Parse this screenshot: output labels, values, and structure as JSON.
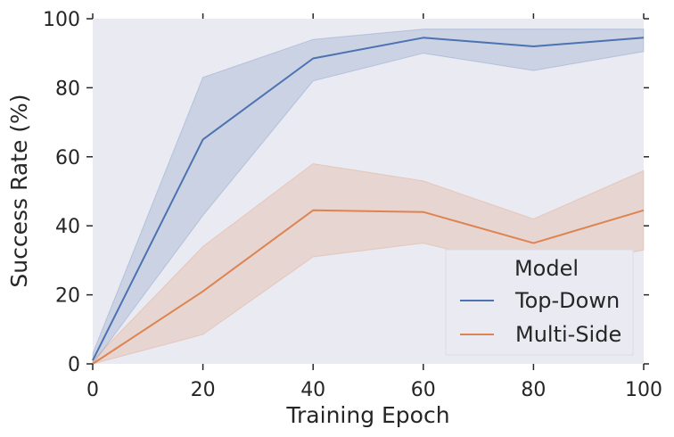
{
  "chart_data": {
    "type": "line",
    "title": "",
    "xlabel": "Training Epoch",
    "ylabel": "Success Rate (%)",
    "xlim": [
      0,
      100
    ],
    "ylim": [
      0,
      100
    ],
    "xticks": [
      0,
      20,
      40,
      60,
      80,
      100
    ],
    "yticks": [
      0,
      20,
      40,
      60,
      80,
      100
    ],
    "grid": false,
    "legend": {
      "title": "Model",
      "position": "lower-right",
      "entries": [
        "Top-Down",
        "Multi-Side"
      ]
    },
    "series": [
      {
        "name": "Top-Down",
        "color": "#4c72b0",
        "x": [
          0,
          20,
          40,
          60,
          80,
          100
        ],
        "values": [
          1,
          65,
          88.5,
          94.5,
          92,
          94.5
        ],
        "ci_lower": [
          0,
          43,
          82,
          90,
          85,
          90.5
        ],
        "ci_upper": [
          3,
          83,
          94,
          97,
          97,
          97
        ]
      },
      {
        "name": "Multi-Side",
        "color": "#dd8452",
        "x": [
          0,
          20,
          40,
          60,
          80,
          100
        ],
        "values": [
          0,
          21,
          44.5,
          44,
          35,
          44.5
        ],
        "ci_lower": [
          0,
          8.5,
          31,
          35,
          27,
          33
        ],
        "ci_upper": [
          1,
          34,
          58,
          53,
          42,
          56
        ]
      }
    ]
  }
}
